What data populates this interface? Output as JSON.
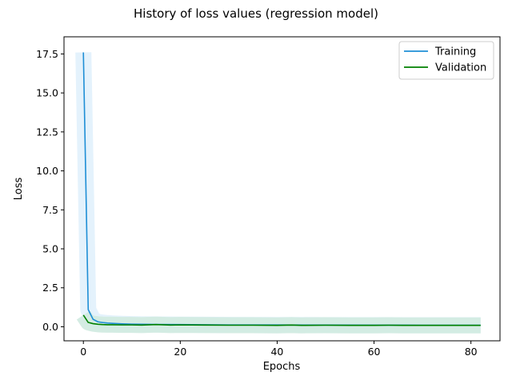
{
  "chart_data": {
    "type": "line",
    "title": "History of loss values (regression model)",
    "xlabel": "Epochs",
    "ylabel": "Loss",
    "xlim": [
      -4,
      86
    ],
    "ylim": [
      -0.9,
      18.6
    ],
    "xticks": [
      0,
      20,
      40,
      60,
      80
    ],
    "yticks": [
      0.0,
      2.5,
      5.0,
      7.5,
      10.0,
      12.5,
      15.0,
      17.5
    ],
    "ytick_labels": [
      "0.0",
      "2.5",
      "5.0",
      "7.5",
      "10.0",
      "12.5",
      "15.0",
      "17.5"
    ],
    "legend_position": "upper-right",
    "grid": false,
    "series": [
      {
        "name": "Training",
        "color": "#1f8fd6",
        "band_color": "#e3f1fc",
        "x": [
          0,
          1,
          2,
          3,
          4,
          5,
          6,
          8,
          10,
          12,
          15,
          20,
          25,
          30,
          40,
          50,
          60,
          70,
          82
        ],
        "values": [
          17.6,
          1.1,
          0.48,
          0.32,
          0.27,
          0.24,
          0.22,
          0.19,
          0.17,
          0.16,
          0.15,
          0.14,
          0.13,
          0.12,
          0.115,
          0.11,
          0.105,
          0.1,
          0.1
        ]
      },
      {
        "name": "Validation",
        "color": "#008000",
        "band_color": "#d2ebe1",
        "x": [
          0,
          1,
          2,
          3,
          4,
          5,
          6,
          8,
          10,
          12,
          15,
          18,
          20,
          25,
          30,
          35,
          40,
          43,
          45,
          50,
          55,
          60,
          63,
          66,
          70,
          75,
          80,
          82
        ],
        "values": [
          0.75,
          0.28,
          0.2,
          0.16,
          0.14,
          0.13,
          0.13,
          0.12,
          0.12,
          0.11,
          0.14,
          0.11,
          0.12,
          0.11,
          0.1,
          0.1,
          0.09,
          0.11,
          0.09,
          0.1,
          0.09,
          0.09,
          0.1,
          0.09,
          0.09,
          0.09,
          0.09,
          0.09
        ]
      }
    ]
  }
}
